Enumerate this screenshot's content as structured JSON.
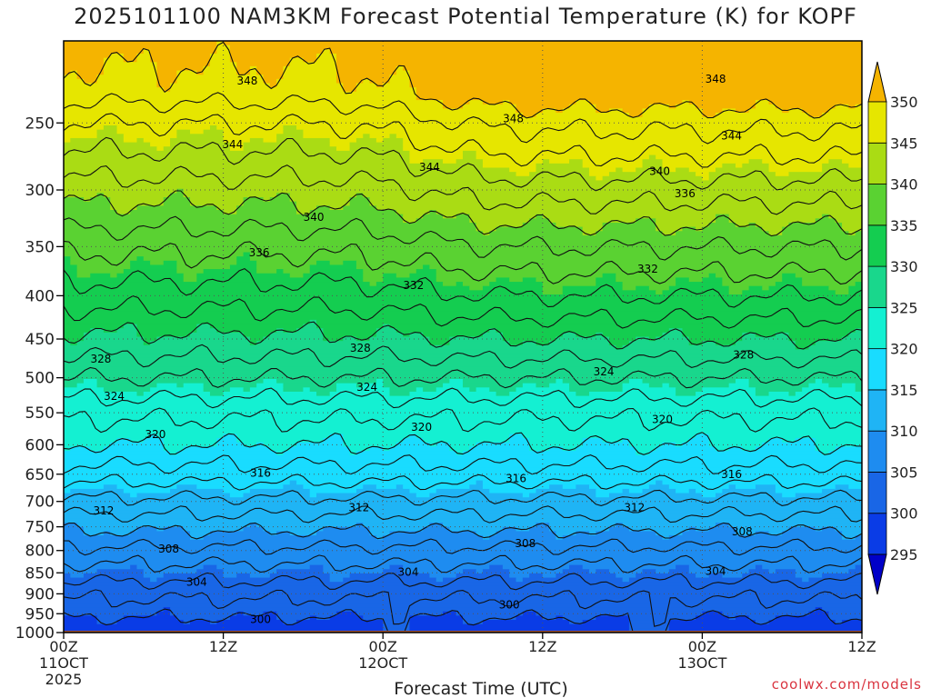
{
  "chart_data": {
    "type": "contour",
    "title": "2025101100 NAM3KM Forecast Potential Temperature (K) for KOPF",
    "xlabel": "Forecast Time (UTC)",
    "ylabel": "",
    "credit": "coolwx.com/models",
    "x_range_hours": [
      0,
      60
    ],
    "x_ticks": [
      {
        "hour": 0,
        "label": "00Z",
        "sub1": "11OCT",
        "sub2": "2025"
      },
      {
        "hour": 12,
        "label": "12Z",
        "sub1": "",
        "sub2": ""
      },
      {
        "hour": 24,
        "label": "00Z",
        "sub1": "12OCT",
        "sub2": ""
      },
      {
        "hour": 36,
        "label": "12Z",
        "sub1": "",
        "sub2": ""
      },
      {
        "hour": 48,
        "label": "00Z",
        "sub1": "13OCT",
        "sub2": ""
      },
      {
        "hour": 60,
        "label": "12Z",
        "sub1": "",
        "sub2": ""
      }
    ],
    "y_axis": "pressure (hPa), log scale",
    "y_range_hPa": [
      1000,
      200
    ],
    "y_ticks": [
      250,
      300,
      350,
      400,
      450,
      500,
      550,
      600,
      650,
      700,
      750,
      800,
      850,
      900,
      950,
      1000
    ],
    "colorbar": {
      "levels": [
        295,
        300,
        305,
        310,
        315,
        320,
        325,
        330,
        335,
        340,
        345,
        350
      ],
      "colors": [
        "#0000c8",
        "#0a3ce6",
        "#1966e6",
        "#1e8cf0",
        "#1fb4f5",
        "#19dcff",
        "#14f0d2",
        "#19d78c",
        "#14cd50",
        "#5ad232",
        "#aadc14",
        "#e6e600",
        "#ffd200",
        "#f5b400"
      ]
    },
    "ground_color": "#a0522d",
    "contour_interval_K": 4,
    "contour_labels": [
      {
        "value": "300",
        "positions": [
          [
            14.8,
            965
          ],
          [
            33.5,
            927
          ]
        ]
      },
      {
        "value": "304",
        "positions": [
          [
            10.0,
            872
          ],
          [
            25.9,
            848
          ],
          [
            49.0,
            846
          ]
        ]
      },
      {
        "value": "308",
        "positions": [
          [
            7.9,
            797
          ],
          [
            34.7,
            785
          ],
          [
            51.0,
            760
          ]
        ]
      },
      {
        "value": "312",
        "positions": [
          [
            3.0,
            718
          ],
          [
            22.2,
            712
          ],
          [
            42.9,
            712
          ]
        ]
      },
      {
        "value": "316",
        "positions": [
          [
            14.8,
            648
          ],
          [
            34.0,
            658
          ],
          [
            50.2,
            650
          ]
        ]
      },
      {
        "value": "320",
        "positions": [
          [
            6.9,
            583
          ],
          [
            26.9,
            572
          ],
          [
            45.0,
            560
          ]
        ]
      },
      {
        "value": "324",
        "positions": [
          [
            3.8,
            526
          ],
          [
            22.8,
            513
          ],
          [
            40.6,
            492
          ]
        ]
      },
      {
        "value": "328",
        "positions": [
          [
            2.8,
            475
          ],
          [
            22.3,
            461
          ],
          [
            51.1,
            470
          ]
        ]
      },
      {
        "value": "332",
        "positions": [
          [
            26.3,
            389
          ],
          [
            43.9,
            372
          ]
        ]
      },
      {
        "value": "336",
        "positions": [
          [
            14.7,
            356
          ],
          [
            46.7,
            303
          ]
        ]
      },
      {
        "value": "340",
        "positions": [
          [
            18.8,
            323
          ],
          [
            44.8,
            285
          ]
        ]
      },
      {
        "value": "344",
        "positions": [
          [
            12.7,
            265
          ],
          [
            27.5,
            282
          ],
          [
            50.2,
            259
          ]
        ]
      },
      {
        "value": "348",
        "positions": [
          [
            13.8,
            223
          ],
          [
            33.8,
            247
          ],
          [
            49.0,
            222
          ]
        ]
      }
    ]
  }
}
